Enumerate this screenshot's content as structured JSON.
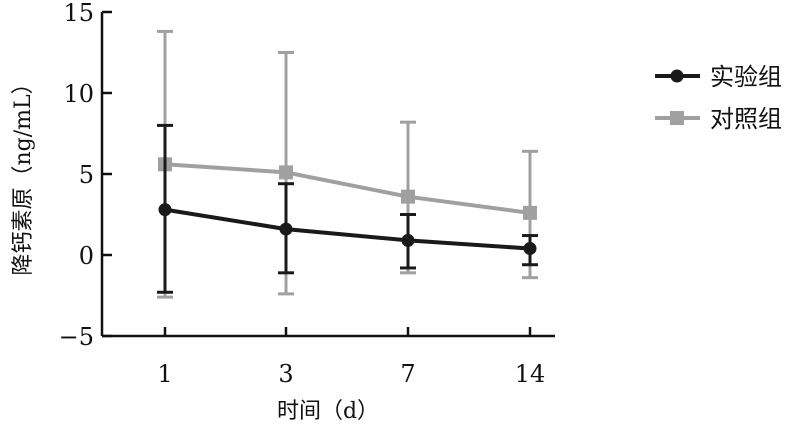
{
  "chart_data": {
    "type": "line",
    "xlabel": "时间（d）",
    "ylabel": "降钙素原（ng/mL）",
    "categories": [
      "1",
      "3",
      "7",
      "14"
    ],
    "ylim": [
      -5,
      15
    ],
    "yticks": [
      -5,
      0,
      5,
      10,
      15
    ],
    "grid": false,
    "legend_position": "top-right",
    "series": [
      {
        "name": "实验组",
        "marker": "circle",
        "color": "#1a1a1a",
        "values": [
          2.8,
          1.6,
          0.9,
          0.4
        ],
        "error_upper": [
          8.0,
          4.4,
          2.5,
          1.2
        ],
        "error_lower": [
          -2.3,
          -1.1,
          -0.8,
          -0.6
        ]
      },
      {
        "name": "对照组",
        "marker": "square",
        "color": "#a0a0a0",
        "values": [
          5.6,
          5.1,
          3.6,
          2.6
        ],
        "error_upper": [
          13.8,
          12.5,
          8.2,
          6.4
        ],
        "error_lower": [
          -2.6,
          -2.4,
          -1.1,
          -1.4
        ]
      }
    ]
  }
}
